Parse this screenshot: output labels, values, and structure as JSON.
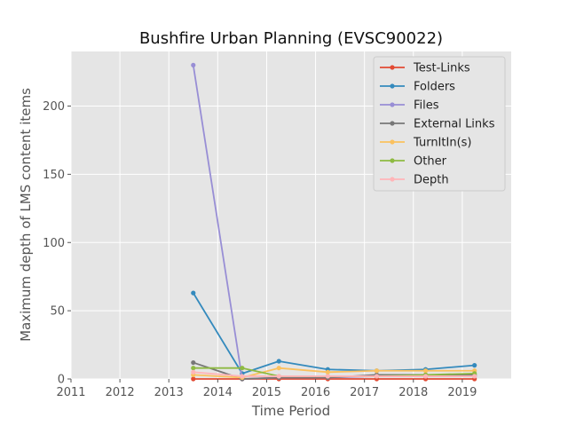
{
  "chart_data": {
    "type": "line",
    "title": "Bushfire Urban Planning (EVSC90022)",
    "xlabel": "Time Period",
    "ylabel": "Maximum depth of LMS content items",
    "xlim": [
      2011,
      2020
    ],
    "ylim": [
      0,
      240
    ],
    "x_ticks": [
      2011,
      2012,
      2013,
      2014,
      2015,
      2016,
      2017,
      2018,
      2019
    ],
    "y_ticks": [
      0,
      50,
      100,
      150,
      200
    ],
    "grid": true,
    "legend_position": "top-right",
    "x": [
      2013.5,
      2014.5,
      2015.25,
      2016.25,
      2017.25,
      2018.25,
      2019.25
    ],
    "series": [
      {
        "name": "Test-Links",
        "color": "#e24a33",
        "values": [
          0,
          0,
          0,
          0,
          0,
          0,
          0
        ]
      },
      {
        "name": "Folders",
        "color": "#348abd",
        "values": [
          63,
          4,
          13,
          7,
          6,
          7,
          10
        ]
      },
      {
        "name": "Files",
        "color": "#988ed5",
        "values": [
          230,
          0,
          1,
          1,
          2,
          2,
          2
        ]
      },
      {
        "name": "External Links",
        "color": "#777777",
        "values": [
          12,
          0,
          1,
          1,
          3,
          3,
          3
        ]
      },
      {
        "name": "TurnItIn(s)",
        "color": "#fbc15e",
        "values": [
          3,
          1,
          8,
          5,
          6,
          6,
          6
        ]
      },
      {
        "name": "Other",
        "color": "#8eba42",
        "values": [
          8,
          8,
          2,
          2,
          2,
          3,
          4
        ]
      },
      {
        "name": "Depth",
        "color": "#ffb5b8",
        "values": [
          5,
          2,
          2,
          2,
          2,
          2,
          2
        ]
      }
    ]
  }
}
